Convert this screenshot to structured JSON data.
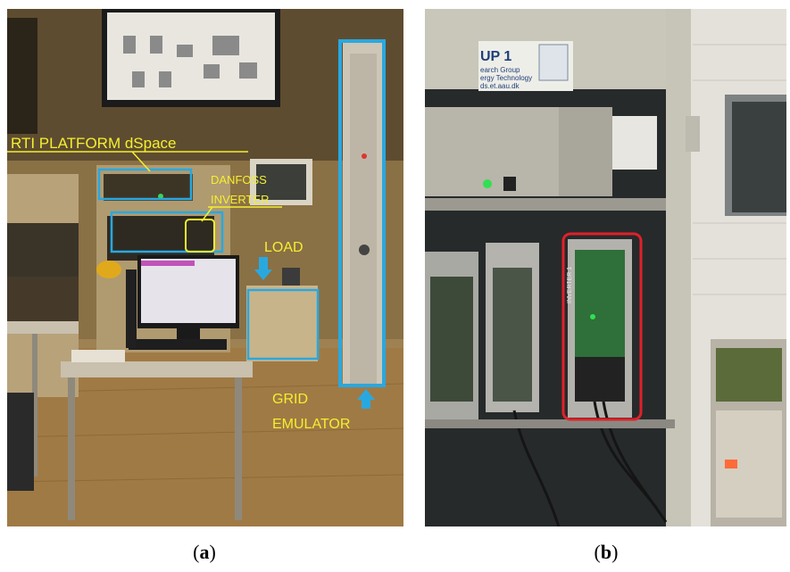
{
  "panel_a": {
    "labels": {
      "rti": "RTI PLATFORM dSpace",
      "danfoss_line1": "DANFOSS",
      "danfoss_line2": "INVERTER",
      "load": "LOAD",
      "grid_line1": "GRID",
      "grid_line2": "EMULATOR"
    },
    "caption_letter": "a"
  },
  "panel_b": {
    "sticker_lines": [
      "UP 1",
      "earch Group",
      "ergy Technology",
      "ds.et.aau.dk"
    ],
    "module_label": "INVERTER 1",
    "caption_letter": "b"
  },
  "colors": {
    "annotation_text": "#f4ef2e",
    "box_blue": "#29a8e0",
    "box_yellow": "#f4ef2e",
    "highlight_red": "#e0202a"
  }
}
